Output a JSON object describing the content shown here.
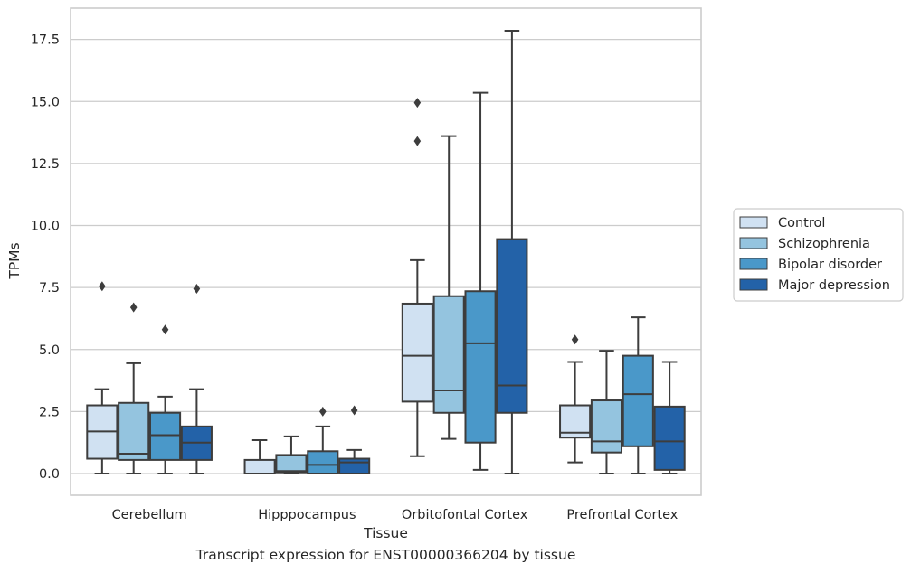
{
  "chart_data": {
    "type": "box",
    "caption": "Transcript expression for ENST00000366204 by tissue",
    "xlabel": "Tissue",
    "ylabel": "TPMs",
    "ylim": [
      -0.85,
      17.8
    ],
    "yticks": [
      "0.0",
      "2.5",
      "5.0",
      "7.5",
      "10.0",
      "12.5",
      "15.0",
      "17.5"
    ],
    "grid": true,
    "legend_position": "right",
    "categories": [
      "Cerebellum",
      "Hipppocampus",
      "Orbitofontal Cortex",
      "Prefrontal Cortex"
    ],
    "series": [
      {
        "name": "Control",
        "color": "#d0e1f2",
        "boxes": [
          {
            "whislo": 0.0,
            "q1": 0.6,
            "med": 1.7,
            "q3": 2.75,
            "whishi": 3.4,
            "fliers": [
              7.55
            ]
          },
          {
            "whislo": 0.0,
            "q1": 0.0,
            "med": 0.0,
            "q3": 0.55,
            "whishi": 1.35,
            "fliers": []
          },
          {
            "whislo": 0.7,
            "q1": 2.9,
            "med": 4.75,
            "q3": 6.85,
            "whishi": 8.6,
            "fliers": [
              13.4,
              14.95
            ]
          },
          {
            "whislo": 0.45,
            "q1": 1.45,
            "med": 1.65,
            "q3": 2.75,
            "whishi": 4.5,
            "fliers": [
              5.4
            ]
          }
        ]
      },
      {
        "name": "Schizophrenia",
        "color": "#94c4df",
        "boxes": [
          {
            "whislo": 0.0,
            "q1": 0.55,
            "med": 0.8,
            "q3": 2.85,
            "whishi": 4.45,
            "fliers": [
              6.7
            ]
          },
          {
            "whislo": 0.0,
            "q1": 0.05,
            "med": 0.1,
            "q3": 0.75,
            "whishi": 1.5,
            "fliers": []
          },
          {
            "whislo": 1.4,
            "q1": 2.45,
            "med": 3.35,
            "q3": 7.15,
            "whishi": 13.6,
            "fliers": []
          },
          {
            "whislo": 0.0,
            "q1": 0.85,
            "med": 1.3,
            "q3": 2.95,
            "whishi": 4.95,
            "fliers": []
          }
        ]
      },
      {
        "name": "Bipolar disorder",
        "color": "#4a98c9",
        "boxes": [
          {
            "whislo": 0.0,
            "q1": 0.55,
            "med": 1.55,
            "q3": 2.45,
            "whishi": 3.1,
            "fliers": [
              5.8
            ]
          },
          {
            "whislo": 0.0,
            "q1": 0.0,
            "med": 0.35,
            "q3": 0.9,
            "whishi": 1.9,
            "fliers": [
              2.5
            ]
          },
          {
            "whislo": 0.15,
            "q1": 1.25,
            "med": 5.25,
            "q3": 7.35,
            "whishi": 15.35,
            "fliers": []
          },
          {
            "whislo": 0.0,
            "q1": 1.1,
            "med": 3.2,
            "q3": 4.75,
            "whishi": 6.3,
            "fliers": []
          }
        ]
      },
      {
        "name": "Major depression",
        "color": "#2362a8",
        "boxes": [
          {
            "whislo": 0.0,
            "q1": 0.55,
            "med": 1.25,
            "q3": 1.9,
            "whishi": 3.4,
            "fliers": [
              7.45
            ]
          },
          {
            "whislo": 0.0,
            "q1": 0.0,
            "med": 0.45,
            "q3": 0.6,
            "whishi": 0.95,
            "fliers": [
              2.55
            ]
          },
          {
            "whislo": 0.0,
            "q1": 2.45,
            "med": 3.55,
            "q3": 9.45,
            "whishi": 17.85,
            "fliers": []
          },
          {
            "whislo": 0.0,
            "q1": 0.15,
            "med": 1.3,
            "q3": 2.7,
            "whishi": 4.5,
            "fliers": []
          }
        ]
      }
    ]
  }
}
